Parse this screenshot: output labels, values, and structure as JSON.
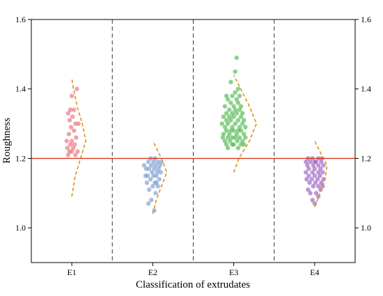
{
  "chart_data": {
    "type": "scatter",
    "title": "",
    "xlabel": "Classification of extrudates",
    "ylabel": "Roughness",
    "categories": [
      "E1",
      "E2",
      "E3",
      "E4"
    ],
    "ylim": [
      0.9,
      1.6
    ],
    "yticks": [
      1.0,
      1.2,
      1.4,
      1.6
    ],
    "ytick_labels": [
      "1.0",
      "1.2",
      "1.4",
      "1.6"
    ],
    "right_axis_ticks": true,
    "grid": false,
    "legend": "none",
    "separators_between_categories": true,
    "reference_line": {
      "y": 1.2,
      "color": "#d9381e"
    },
    "series": [
      {
        "category": "E1",
        "color": "#e8707a",
        "points": [
          [
            -0.05,
            1.21
          ],
          [
            0.05,
            1.21
          ],
          [
            -0.03,
            1.22
          ],
          [
            0.0,
            1.22
          ],
          [
            0.08,
            1.22
          ],
          [
            -0.06,
            1.23
          ],
          [
            0.02,
            1.23
          ],
          [
            -0.02,
            1.24
          ],
          [
            0.04,
            1.24
          ],
          [
            0.0,
            1.25
          ],
          [
            -0.07,
            1.25
          ],
          [
            0.06,
            1.26
          ],
          [
            -0.04,
            1.27
          ],
          [
            0.03,
            1.28
          ],
          [
            -0.01,
            1.29
          ],
          [
            0.05,
            1.3
          ],
          [
            0.09,
            1.3
          ],
          [
            -0.03,
            1.31
          ],
          [
            0.01,
            1.32
          ],
          [
            -0.05,
            1.33
          ],
          [
            0.03,
            1.34
          ],
          [
            -0.02,
            1.34
          ],
          [
            0.0,
            1.38
          ],
          [
            0.07,
            1.4
          ]
        ],
        "density_curve": [
          [
            1.09,
            0.0
          ],
          [
            1.15,
            0.02
          ],
          [
            1.2,
            0.05
          ],
          [
            1.25,
            0.08
          ],
          [
            1.3,
            0.06
          ],
          [
            1.35,
            0.03
          ],
          [
            1.4,
            0.01
          ],
          [
            1.43,
            0.0
          ]
        ]
      },
      {
        "category": "E2",
        "color": "#7a9bd0",
        "points": [
          [
            -0.06,
            1.07
          ],
          [
            0.02,
            1.05
          ],
          [
            -0.02,
            1.08
          ],
          [
            0.04,
            1.1
          ],
          [
            -0.05,
            1.11
          ],
          [
            0.07,
            1.12
          ],
          [
            0.0,
            1.12
          ],
          [
            -0.08,
            1.13
          ],
          [
            0.03,
            1.13
          ],
          [
            0.09,
            1.14
          ],
          [
            -0.03,
            1.14
          ],
          [
            0.01,
            1.15
          ],
          [
            0.05,
            1.15
          ],
          [
            -0.07,
            1.15
          ],
          [
            -0.01,
            1.16
          ],
          [
            0.06,
            1.16
          ],
          [
            -0.05,
            1.17
          ],
          [
            0.02,
            1.17
          ],
          [
            0.08,
            1.17
          ],
          [
            -0.09,
            1.17
          ],
          [
            -0.02,
            1.18
          ],
          [
            0.04,
            1.18
          ],
          [
            0.1,
            1.18
          ],
          [
            -0.06,
            1.19
          ],
          [
            0.01,
            1.19
          ],
          [
            0.07,
            1.19
          ],
          [
            -0.03,
            1.2
          ],
          [
            0.03,
            1.2
          ],
          [
            0.12,
            1.19
          ],
          [
            -0.12,
            1.18
          ],
          [
            0.11,
            1.16
          ],
          [
            -0.1,
            1.15
          ],
          [
            0.05,
            1.13
          ]
        ],
        "density_curve": [
          [
            1.04,
            0.0
          ],
          [
            1.08,
            0.02
          ],
          [
            1.12,
            0.05
          ],
          [
            1.16,
            0.08
          ],
          [
            1.2,
            0.05
          ],
          [
            1.23,
            0.02
          ],
          [
            1.25,
            0.0
          ]
        ]
      },
      {
        "category": "E3",
        "color": "#4db84d",
        "points": [
          [
            -0.1,
            1.24
          ],
          [
            0.0,
            1.24
          ],
          [
            0.1,
            1.24
          ],
          [
            -0.05,
            1.25
          ],
          [
            0.05,
            1.25
          ],
          [
            -0.12,
            1.25
          ],
          [
            0.12,
            1.25
          ],
          [
            -0.08,
            1.26
          ],
          [
            0.02,
            1.26
          ],
          [
            0.08,
            1.26
          ],
          [
            -0.02,
            1.26
          ],
          [
            -0.14,
            1.27
          ],
          [
            -0.06,
            1.27
          ],
          [
            0.04,
            1.27
          ],
          [
            0.14,
            1.27
          ],
          [
            -0.1,
            1.28
          ],
          [
            0.0,
            1.28
          ],
          [
            0.1,
            1.28
          ],
          [
            -0.04,
            1.28
          ],
          [
            0.06,
            1.28
          ],
          [
            -0.12,
            1.29
          ],
          [
            -0.02,
            1.29
          ],
          [
            0.08,
            1.29
          ],
          [
            0.16,
            1.29
          ],
          [
            -0.08,
            1.3
          ],
          [
            0.02,
            1.3
          ],
          [
            0.12,
            1.3
          ],
          [
            -0.16,
            1.3
          ],
          [
            -0.04,
            1.31
          ],
          [
            0.06,
            1.31
          ],
          [
            0.14,
            1.31
          ],
          [
            -0.1,
            1.31
          ],
          [
            0.0,
            1.32
          ],
          [
            0.1,
            1.32
          ],
          [
            -0.06,
            1.32
          ],
          [
            -0.14,
            1.32
          ],
          [
            0.04,
            1.33
          ],
          [
            -0.02,
            1.33
          ],
          [
            0.12,
            1.33
          ],
          [
            -0.1,
            1.33
          ],
          [
            0.08,
            1.34
          ],
          [
            -0.06,
            1.34
          ],
          [
            0.02,
            1.34
          ],
          [
            -0.12,
            1.35
          ],
          [
            0.0,
            1.35
          ],
          [
            0.1,
            1.35
          ],
          [
            -0.04,
            1.36
          ],
          [
            0.06,
            1.36
          ],
          [
            -0.08,
            1.37
          ],
          [
            0.04,
            1.37
          ],
          [
            -0.02,
            1.38
          ],
          [
            0.08,
            1.38
          ],
          [
            -0.1,
            1.38
          ],
          [
            0.02,
            1.39
          ],
          [
            0.06,
            1.4
          ],
          [
            -0.04,
            1.42
          ],
          [
            0.02,
            1.45
          ],
          [
            0.04,
            1.49
          ],
          [
            -0.08,
            1.23
          ],
          [
            0.06,
            1.23
          ],
          [
            0.14,
            1.24
          ],
          [
            -0.15,
            1.26
          ],
          [
            0.16,
            1.26
          ],
          [
            -0.02,
            1.24
          ]
        ],
        "density_curve": [
          [
            1.16,
            0.0
          ],
          [
            1.2,
            0.03
          ],
          [
            1.25,
            0.09
          ],
          [
            1.3,
            0.13
          ],
          [
            1.35,
            0.09
          ],
          [
            1.4,
            0.04
          ],
          [
            1.44,
            0.0
          ]
        ]
      },
      {
        "category": "E4",
        "color": "#9a5ec0",
        "points": [
          [
            0.0,
            1.07
          ],
          [
            -0.03,
            1.08
          ],
          [
            0.05,
            1.09
          ],
          [
            -0.06,
            1.1
          ],
          [
            0.02,
            1.1
          ],
          [
            0.08,
            1.11
          ],
          [
            -0.09,
            1.11
          ],
          [
            -0.02,
            1.12
          ],
          [
            0.05,
            1.12
          ],
          [
            0.11,
            1.12
          ],
          [
            -0.07,
            1.13
          ],
          [
            0.01,
            1.13
          ],
          [
            0.09,
            1.13
          ],
          [
            -0.11,
            1.14
          ],
          [
            -0.04,
            1.14
          ],
          [
            0.04,
            1.14
          ],
          [
            0.12,
            1.14
          ],
          [
            -0.08,
            1.15
          ],
          [
            0.0,
            1.15
          ],
          [
            0.07,
            1.15
          ],
          [
            -0.12,
            1.16
          ],
          [
            -0.03,
            1.16
          ],
          [
            0.05,
            1.16
          ],
          [
            0.11,
            1.16
          ],
          [
            -0.08,
            1.17
          ],
          [
            0.0,
            1.17
          ],
          [
            0.08,
            1.17
          ],
          [
            -0.1,
            1.18
          ],
          [
            -0.02,
            1.18
          ],
          [
            0.05,
            1.18
          ],
          [
            0.12,
            1.18
          ],
          [
            -0.06,
            1.19
          ],
          [
            0.02,
            1.19
          ],
          [
            0.09,
            1.19
          ],
          [
            -0.12,
            1.19
          ],
          [
            -0.03,
            1.2
          ],
          [
            0.05,
            1.2
          ],
          [
            -0.09,
            1.2
          ],
          [
            0.1,
            1.2
          ],
          [
            0.0,
            1.19
          ]
        ],
        "density_curve": [
          [
            1.06,
            0.0
          ],
          [
            1.1,
            0.03
          ],
          [
            1.14,
            0.06
          ],
          [
            1.18,
            0.07
          ],
          [
            1.22,
            0.03
          ],
          [
            1.25,
            0.0
          ]
        ]
      }
    ]
  }
}
